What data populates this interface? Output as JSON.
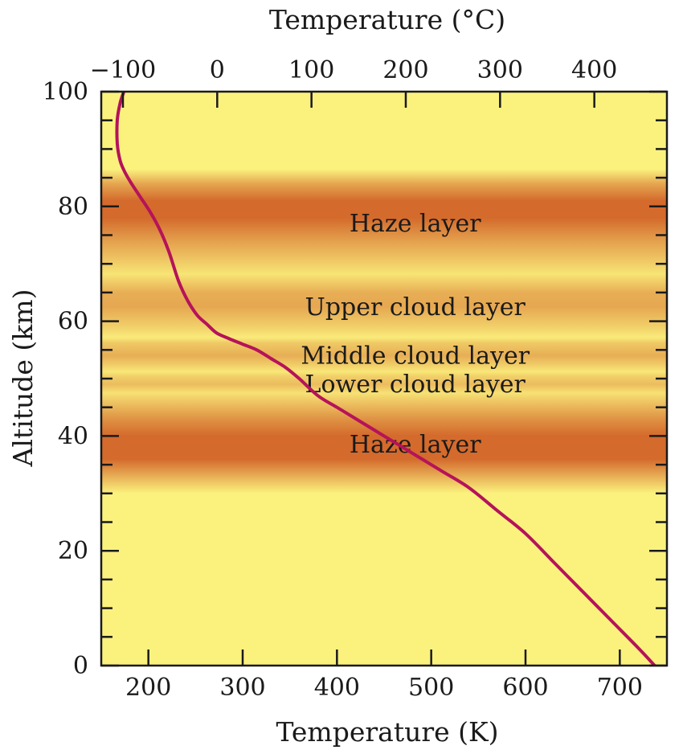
{
  "chart_data": {
    "type": "line",
    "xlabel": "Temperature (K)",
    "x2label": "Temperature (°C)",
    "ylabel": "Altitude (km)",
    "xlim": [
      150,
      750
    ],
    "ylim": [
      0,
      100
    ],
    "x_ticks": [
      200,
      300,
      400,
      500,
      600,
      700
    ],
    "x2_ticks": [
      -100,
      0,
      100,
      200,
      300,
      400
    ],
    "x2_tick_labels": [
      "−100",
      "0",
      "100",
      "200",
      "300",
      "400"
    ],
    "y_ticks": [
      0,
      20,
      40,
      60,
      80,
      100
    ],
    "colors": {
      "background": "#fbf27e",
      "band": "#d46a2c",
      "curve": "#b5135a"
    },
    "layers": [
      {
        "label": "Haze layer",
        "from": 68,
        "to": 86
      },
      {
        "label": "Upper cloud layer",
        "from": 57,
        "to": 68
      },
      {
        "label": "Middle cloud layer",
        "from": 51,
        "to": 57
      },
      {
        "label": "Lower cloud layer",
        "from": 47,
        "to": 51
      },
      {
        "label": "Haze layer",
        "from": 30,
        "to": 47
      }
    ],
    "series": [
      {
        "x": [
          737,
          720,
          690,
          660,
          630,
          600,
          570,
          540,
          510,
          480,
          450,
          420,
          400,
          380,
          360,
          345,
          330,
          315,
          300,
          285,
          272,
          262,
          252,
          242,
          232,
          222,
          212,
          202,
          192,
          182,
          175,
          170,
          167,
          167,
          170,
          174
        ],
        "y": [
          0,
          3,
          8,
          13,
          18,
          23,
          27,
          31,
          34,
          37,
          40,
          43,
          45,
          47,
          50,
          52,
          53.5,
          55,
          56,
          57,
          58,
          59.5,
          61,
          63.5,
          67,
          72,
          76,
          79,
          81.5,
          84,
          86,
          88,
          91,
          95,
          98,
          100
        ]
      }
    ]
  }
}
